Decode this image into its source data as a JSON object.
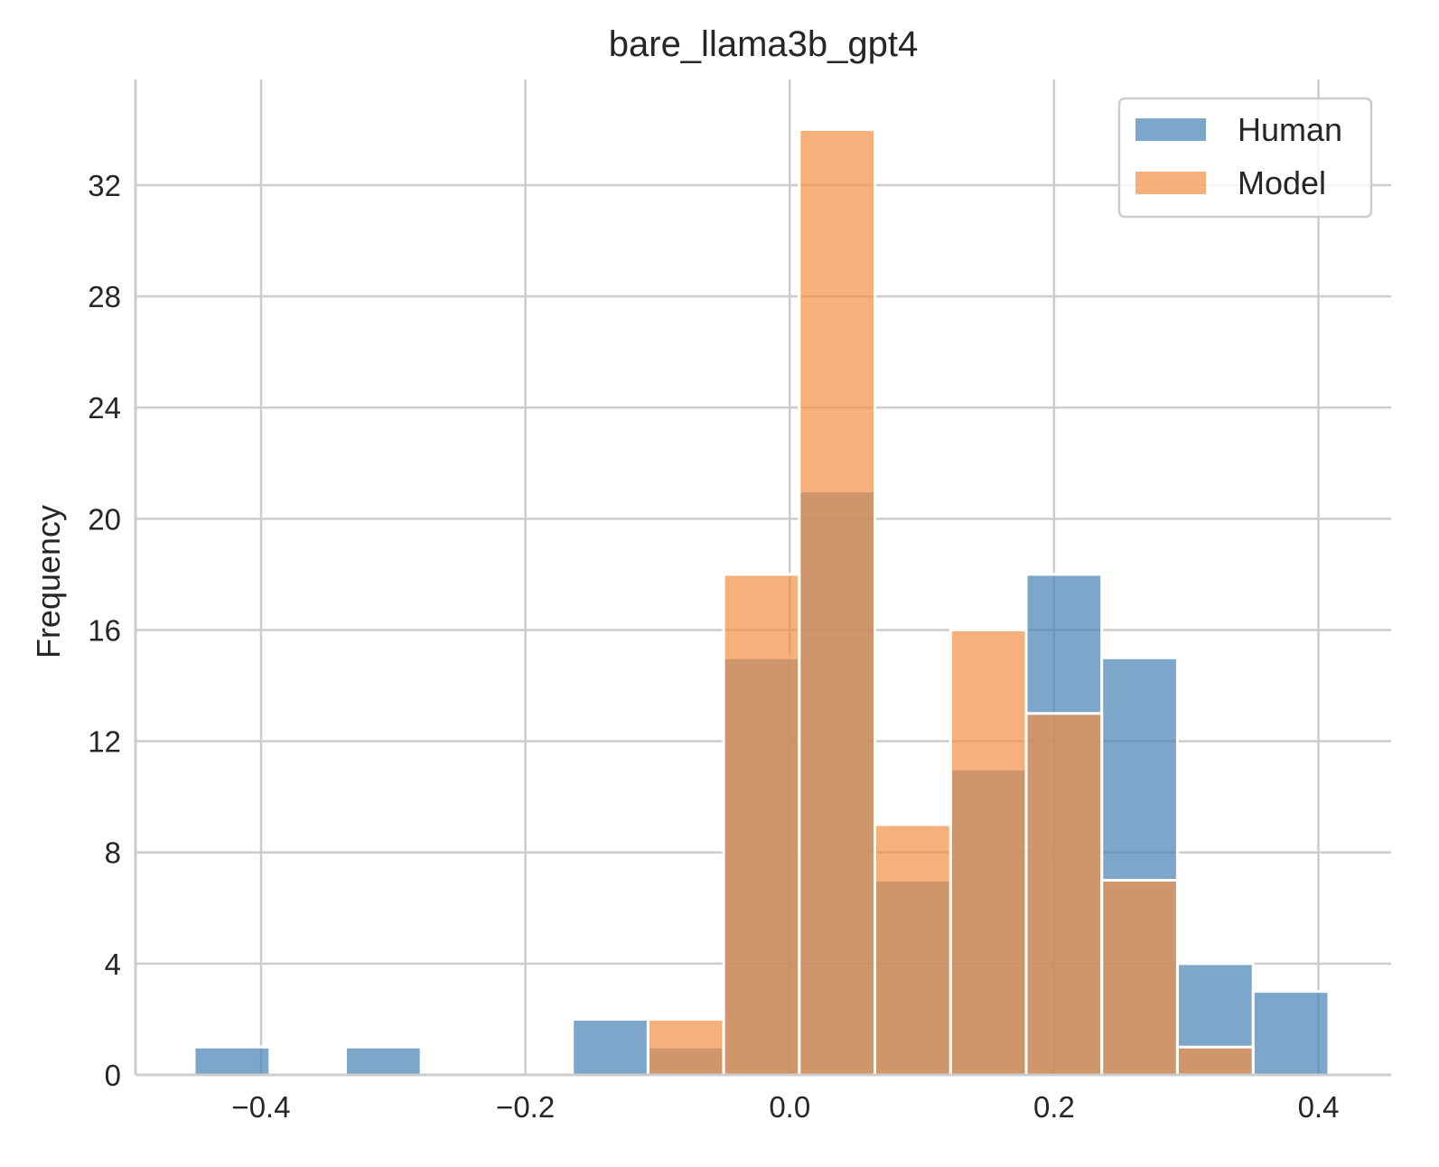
{
  "chart_data": {
    "type": "bar",
    "title": "bare_llama3b_gpt4",
    "xlabel": "",
    "ylabel": "Frequency",
    "xlim": [
      -0.495,
      0.455
    ],
    "ylim": [
      0,
      35.8
    ],
    "xticks": [
      -0.4,
      -0.2,
      0.0,
      0.2,
      0.4
    ],
    "xtick_labels": [
      "−0.4",
      "−0.2",
      "0.0",
      "0.2",
      "0.4"
    ],
    "yticks": [
      0,
      4,
      8,
      12,
      16,
      20,
      24,
      28,
      32
    ],
    "ytick_labels": [
      "0",
      "4",
      "8",
      "12",
      "16",
      "20",
      "24",
      "28",
      "32"
    ],
    "grid": true,
    "legend_position": "top-right",
    "colors": {
      "Human": "#4682b4",
      "Model": "#f28e45",
      "overlap": "#d19268",
      "grid": "#cccccc",
      "edge": "#ffffff"
    },
    "bin_edges": [
      -0.4506,
      -0.3933,
      -0.3361,
      -0.2789,
      -0.2217,
      -0.1644,
      -0.1072,
      -0.05,
      0.0072,
      0.0644,
      0.1217,
      0.1789,
      0.2361,
      0.2933,
      0.3506,
      0.4078
    ],
    "series": [
      {
        "name": "Human",
        "values": [
          1,
          0,
          1,
          0,
          0,
          2,
          1,
          15,
          21,
          7,
          11,
          18,
          15,
          4,
          3
        ]
      },
      {
        "name": "Model",
        "values": [
          0,
          0,
          0,
          0,
          0,
          0,
          2,
          18,
          34,
          9,
          16,
          13,
          7,
          1,
          0
        ]
      }
    ]
  }
}
